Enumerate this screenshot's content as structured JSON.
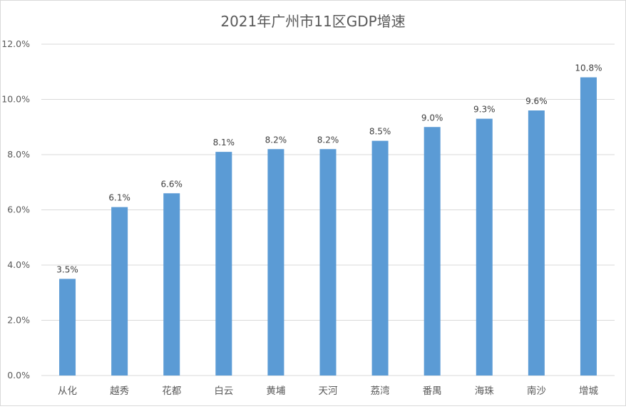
{
  "chart_data": {
    "type": "bar",
    "title": "2021年广州市11区GDP增速",
    "xlabel": "",
    "ylabel": "",
    "categories": [
      "从化",
      "越秀",
      "花都",
      "白云",
      "黄埔",
      "天河",
      "荔湾",
      "番禺",
      "海珠",
      "南沙",
      "增城"
    ],
    "values": [
      3.5,
      6.1,
      6.6,
      8.1,
      8.2,
      8.2,
      8.5,
      9.0,
      9.3,
      9.6,
      10.8
    ],
    "data_labels": [
      "3.5%",
      "6.1%",
      "6.6%",
      "8.1%",
      "8.2%",
      "8.2%",
      "8.5%",
      "9.0%",
      "9.3%",
      "9.6%",
      "10.8%"
    ],
    "ylim": [
      0,
      12
    ],
    "yticks": [
      0,
      2,
      4,
      6,
      8,
      10,
      12
    ],
    "ytick_labels": [
      "0.0%",
      "2.0%",
      "4.0%",
      "6.0%",
      "8.0%",
      "10.0%",
      "12.0%"
    ],
    "grid": true,
    "legend": "none",
    "bar_color": "#5b9bd5",
    "grid_color": "#d9d9d9",
    "text_color": "#595959"
  }
}
